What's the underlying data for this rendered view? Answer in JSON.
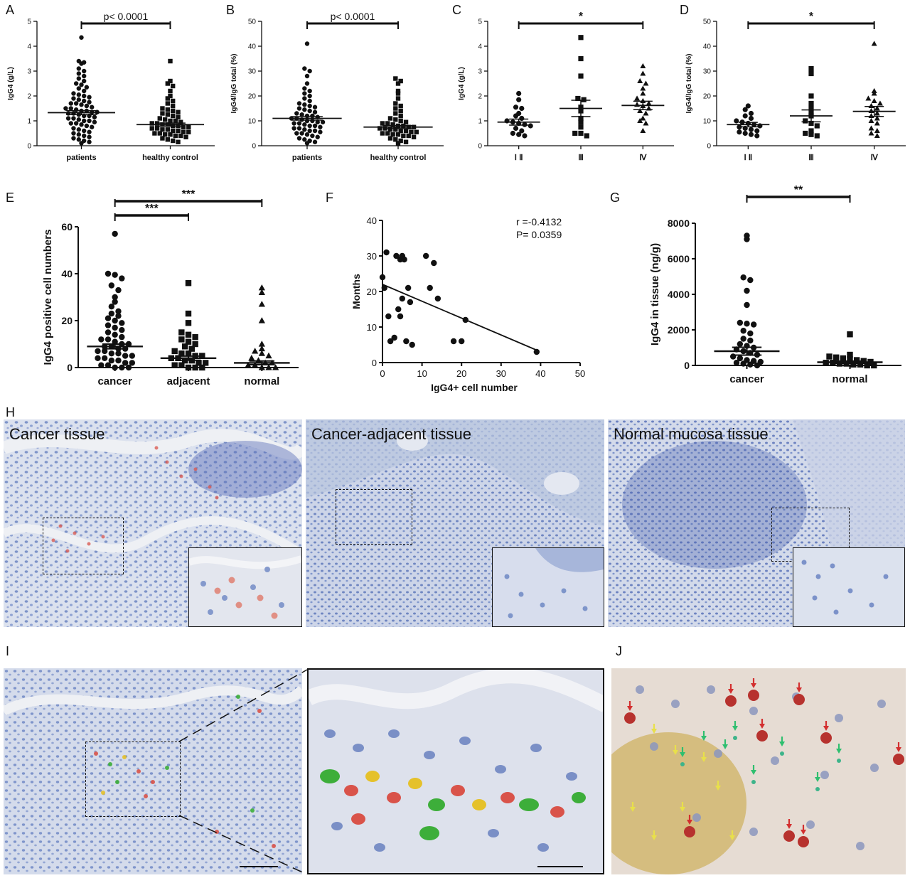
{
  "panel_letters": [
    "A",
    "B",
    "C",
    "D",
    "E",
    "F",
    "G",
    "H",
    "I",
    "J"
  ],
  "chart_data": [
    {
      "id": "A",
      "type": "scatter",
      "title": "",
      "ylabel": "IgG4 (g/L)",
      "xlabel": "",
      "categories": [
        "patients",
        "healthy control"
      ],
      "ylim": [
        0,
        5
      ],
      "yticks": [
        0,
        1,
        2,
        3,
        4,
        5
      ],
      "markers": [
        "circle",
        "square"
      ],
      "means": [
        1.33,
        0.85
      ],
      "sem": [
        0.08,
        0.06
      ],
      "values": [
        [
          4.35,
          3.4,
          3.35,
          3.3,
          3.1,
          3.0,
          2.9,
          2.8,
          2.7,
          2.6,
          2.5,
          2.45,
          2.35,
          2.3,
          2.2,
          2.1,
          2.05,
          2.0,
          1.95,
          1.9,
          1.85,
          1.8,
          1.75,
          1.7,
          1.7,
          1.65,
          1.6,
          1.55,
          1.5,
          1.5,
          1.45,
          1.4,
          1.4,
          1.35,
          1.35,
          1.3,
          1.3,
          1.25,
          1.2,
          1.2,
          1.15,
          1.1,
          1.1,
          1.05,
          1.0,
          1.0,
          0.95,
          0.9,
          0.9,
          0.85,
          0.8,
          0.75,
          0.7,
          0.65,
          0.6,
          0.55,
          0.5,
          0.45,
          0.4,
          0.35,
          0.3,
          0.25,
          0.2,
          0.15,
          0.1
        ],
        [
          3.4,
          2.6,
          2.5,
          2.4,
          2.2,
          2.0,
          1.9,
          1.8,
          1.7,
          1.6,
          1.5,
          1.45,
          1.4,
          1.35,
          1.3,
          1.25,
          1.2,
          1.15,
          1.1,
          1.05,
          1.0,
          1.0,
          0.95,
          0.9,
          0.9,
          0.85,
          0.85,
          0.8,
          0.8,
          0.75,
          0.75,
          0.7,
          0.7,
          0.65,
          0.65,
          0.6,
          0.6,
          0.55,
          0.55,
          0.5,
          0.5,
          0.45,
          0.45,
          0.4,
          0.4,
          0.35,
          0.3,
          0.25,
          0.2,
          0.15
        ]
      ],
      "significance": [
        {
          "from": 0,
          "to": 1,
          "label": "p< 0.0001"
        }
      ]
    },
    {
      "id": "B",
      "type": "scatter",
      "title": "",
      "ylabel": "IgG4/IgG total (%)",
      "xlabel": "",
      "categories": [
        "patients",
        "healthy control"
      ],
      "ylim": [
        0,
        50
      ],
      "yticks": [
        0,
        10,
        20,
        30,
        40,
        50
      ],
      "markers": [
        "circle",
        "square"
      ],
      "means": [
        11.0,
        7.5
      ],
      "sem": [
        0.7,
        0.6
      ],
      "values": [
        [
          41,
          31,
          30,
          28,
          25,
          23,
          22,
          21,
          20,
          19,
          18,
          17,
          16.5,
          16,
          15.5,
          15,
          14.5,
          14,
          13.5,
          13,
          12.5,
          12,
          12,
          11.5,
          11,
          11,
          10.5,
          10,
          10,
          9.5,
          9.5,
          9,
          9,
          8.5,
          8,
          8,
          7.5,
          7,
          7,
          6.5,
          6,
          6,
          5.5,
          5,
          5,
          4.5,
          4,
          3.5,
          3,
          2.5,
          2,
          1.5,
          1
        ],
        [
          27,
          26,
          25,
          22,
          21,
          19,
          17,
          16,
          15,
          14,
          13,
          12,
          11,
          10.5,
          10,
          9.5,
          9,
          9,
          8.5,
          8,
          8,
          7.5,
          7.5,
          7,
          7,
          6.5,
          6.5,
          6,
          6,
          5.5,
          5.5,
          5,
          5,
          4.5,
          4.5,
          4,
          4,
          3.5,
          3,
          2.5,
          2,
          1.5,
          1
        ]
      ],
      "significance": [
        {
          "from": 0,
          "to": 1,
          "label": "p< 0.0001"
        }
      ]
    },
    {
      "id": "C",
      "type": "scatter",
      "title": "",
      "ylabel": "IgG4 (g/L)",
      "xlabel": "",
      "categories": [
        "Ⅰ Ⅱ",
        "Ⅲ",
        "Ⅳ"
      ],
      "ylim": [
        0,
        5
      ],
      "yticks": [
        0,
        1,
        2,
        3,
        4,
        5
      ],
      "markers": [
        "circle",
        "square",
        "triangle"
      ],
      "means": [
        0.95,
        1.5,
        1.62
      ],
      "sem": [
        0.12,
        0.33,
        0.17
      ],
      "values": [
        [
          2.1,
          1.85,
          1.55,
          1.5,
          1.3,
          1.2,
          1.1,
          1.0,
          0.95,
          0.9,
          0.85,
          0.8,
          0.7,
          0.6,
          0.5,
          0.45,
          0.4
        ],
        [
          4.35,
          3.5,
          2.8,
          1.9,
          1.85,
          1.55,
          1.4,
          1.1,
          0.95,
          0.75,
          0.5,
          0.5,
          0.4
        ],
        [
          3.2,
          2.9,
          2.6,
          2.5,
          2.3,
          2.1,
          1.9,
          1.8,
          1.7,
          1.65,
          1.6,
          1.5,
          1.4,
          1.3,
          1.1,
          1.0,
          0.9,
          0.6
        ]
      ],
      "significance": [
        {
          "from": 0,
          "to": 2,
          "label": "*"
        }
      ]
    },
    {
      "id": "D",
      "type": "scatter",
      "title": "",
      "ylabel": "IgG4/IgG total (%)",
      "xlabel": "",
      "categories": [
        "Ⅰ Ⅱ",
        "Ⅲ",
        "Ⅳ"
      ],
      "ylim": [
        0,
        50
      ],
      "yticks": [
        0,
        10,
        20,
        30,
        40,
        50
      ],
      "markers": [
        "circle",
        "square",
        "triangle"
      ],
      "means": [
        8.5,
        12.0,
        13.8
      ],
      "sem": [
        0.9,
        2.4,
        2.0
      ],
      "values": [
        [
          16,
          14.5,
          13,
          12,
          11,
          10,
          9.5,
          9,
          8.5,
          8,
          7.5,
          7,
          6.5,
          6,
          5.5,
          5,
          4.5,
          4
        ],
        [
          31,
          29,
          20,
          17,
          15,
          13,
          12,
          10,
          9,
          8,
          6,
          5,
          4.5,
          4
        ],
        [
          41,
          22,
          21,
          19,
          18,
          17,
          16,
          15,
          14,
          13,
          12,
          11,
          10,
          9,
          7,
          6,
          5,
          4
        ]
      ],
      "significance": [
        {
          "from": 0,
          "to": 2,
          "label": "*"
        }
      ]
    },
    {
      "id": "E",
      "type": "scatter",
      "title": "",
      "ylabel": "IgG4 positive cell numbers",
      "xlabel": "",
      "categories": [
        "cancer",
        "adjacent",
        "normal"
      ],
      "ylim": [
        0,
        60
      ],
      "yticks": [
        0,
        20,
        40,
        60
      ],
      "markers": [
        "circle",
        "square",
        "triangle"
      ],
      "means": [
        9.0,
        4.0,
        2.0
      ],
      "sem": [
        1.0,
        0.9,
        0.8
      ],
      "values": [
        [
          57,
          40,
          39.5,
          38,
          35,
          33,
          30,
          28,
          26,
          24,
          23,
          22,
          21,
          20,
          19,
          18,
          17,
          16,
          15,
          14,
          13,
          12,
          12,
          11,
          10,
          10,
          9,
          9,
          8,
          8,
          7,
          7,
          6,
          6,
          5,
          5,
          4,
          4,
          3,
          3,
          2,
          2,
          1,
          1,
          0,
          0,
          0
        ],
        [
          36,
          23,
          19,
          15,
          14,
          13,
          12,
          11,
          10,
          9,
          8,
          7,
          6,
          6,
          5,
          5,
          4,
          4,
          3,
          3,
          2,
          2,
          1,
          1,
          0,
          0,
          0
        ],
        [
          34,
          32,
          27,
          20,
          10,
          8,
          7,
          6,
          5,
          4,
          3,
          2,
          2,
          1,
          1,
          0,
          0,
          0
        ]
      ],
      "significance": [
        {
          "from": 0,
          "to": 1,
          "label": "***"
        },
        {
          "from": 0,
          "to": 2,
          "label": "***"
        }
      ]
    },
    {
      "id": "F",
      "type": "scatter",
      "title": "",
      "xlabel": "IgG4+ cell number",
      "ylabel": "Months",
      "xlim": [
        0,
        50
      ],
      "ylim": [
        0,
        40
      ],
      "xticks": [
        0,
        10,
        20,
        30,
        40,
        50
      ],
      "yticks": [
        0,
        10,
        20,
        30,
        40
      ],
      "points": [
        [
          0,
          24
        ],
        [
          0.5,
          21
        ],
        [
          1,
          31
        ],
        [
          1.5,
          13
        ],
        [
          2,
          6
        ],
        [
          3,
          7
        ],
        [
          3.5,
          30
        ],
        [
          4,
          15
        ],
        [
          4.5,
          29
        ],
        [
          4.5,
          13
        ],
        [
          5,
          30
        ],
        [
          5,
          18
        ],
        [
          5.5,
          29
        ],
        [
          6,
          6
        ],
        [
          6.5,
          21
        ],
        [
          7,
          17
        ],
        [
          7.5,
          5
        ],
        [
          11,
          30
        ],
        [
          12,
          21
        ],
        [
          13,
          28
        ],
        [
          14,
          18
        ],
        [
          18,
          6
        ],
        [
          20,
          6
        ],
        [
          21,
          12
        ],
        [
          39,
          3
        ]
      ],
      "regression": {
        "x": [
          0,
          39
        ],
        "y": [
          22,
          3.5
        ]
      },
      "annotation": [
        "r =-0.4132",
        "P= 0.0359"
      ]
    },
    {
      "id": "G",
      "type": "scatter",
      "title": "",
      "ylabel": "IgG4 in tissue (ng/g)",
      "xlabel": "",
      "categories": [
        "cancer",
        "normal"
      ],
      "ylim": [
        0,
        8000
      ],
      "yticks": [
        0,
        2000,
        4000,
        6000,
        8000
      ],
      "markers": [
        "circle",
        "square"
      ],
      "means": [
        800,
        180
      ],
      "sem": [
        220,
        60
      ],
      "values": [
        [
          7300,
          7100,
          4950,
          4800,
          4200,
          3400,
          2400,
          2350,
          2300,
          1950,
          1800,
          1500,
          1400,
          1200,
          1100,
          1000,
          900,
          800,
          700,
          600,
          500,
          400,
          300,
          250,
          200,
          150,
          100,
          50,
          0
        ],
        [
          1750,
          600,
          500,
          450,
          400,
          350,
          300,
          250,
          200,
          150,
          150,
          100,
          100,
          50,
          50,
          0,
          0
        ]
      ],
      "significance": [
        {
          "from": 0,
          "to": 1,
          "label": "**"
        }
      ]
    }
  ],
  "micrographs": {
    "h_titles": [
      "Cancer  tissue",
      "Cancer-adjacent tissue",
      "Normal  mucosa tissue"
    ]
  },
  "colors": {
    "background": "#ffffff",
    "ink": "#111111",
    "tissue_blue": "#8ea2cf",
    "tissue_pale": "#dde3ee",
    "stain_red": "#d9534a",
    "stain_green": "#3dae3a",
    "stain_yellow": "#e5c12b"
  }
}
